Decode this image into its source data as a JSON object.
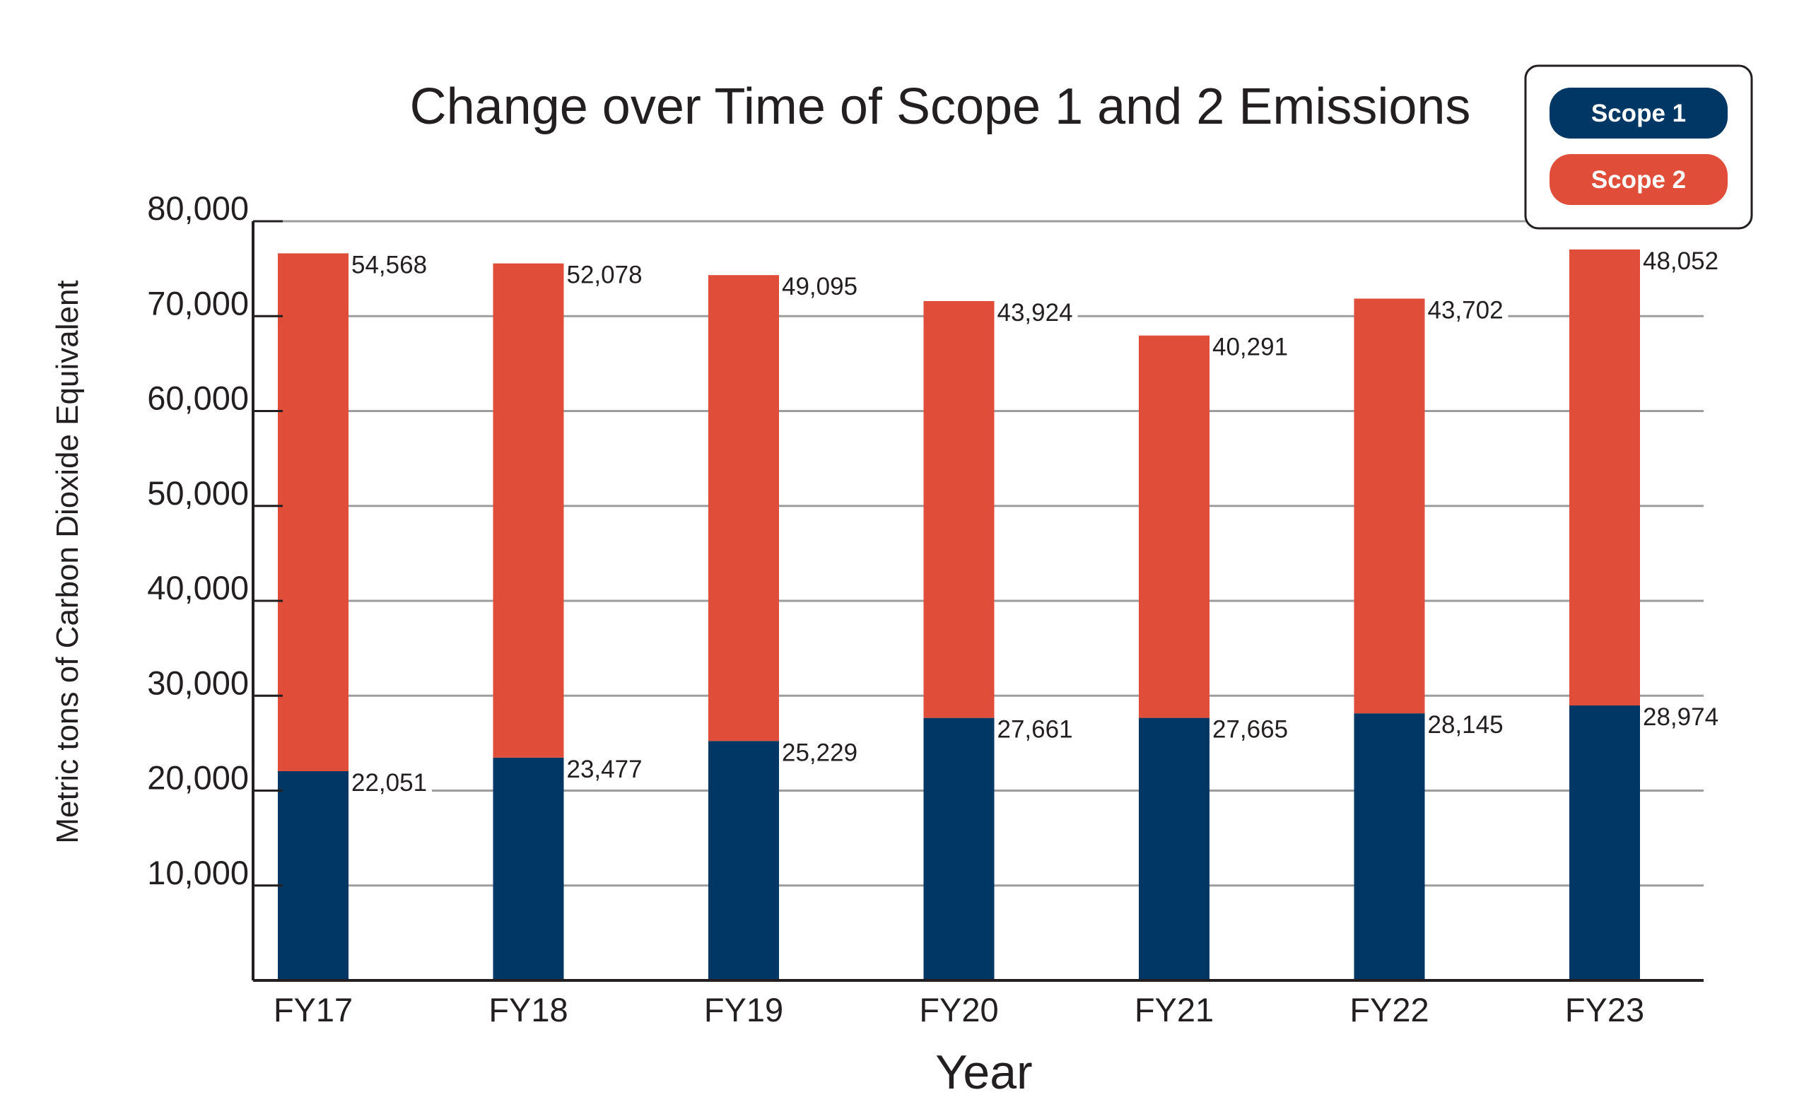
{
  "chart_data": {
    "type": "bar",
    "stacked": true,
    "title": "Change over Time of Scope 1 and 2 Emissions",
    "xlabel": "Year",
    "ylabel": "Metric tons of Carbon Dioxide Equivalent",
    "categories": [
      "FY17",
      "FY18",
      "FY19",
      "FY20",
      "FY21",
      "FY22",
      "FY23"
    ],
    "series": [
      {
        "name": "Scope 1",
        "color": "#003764",
        "values": [
          22051,
          23477,
          25229,
          27661,
          27665,
          28145,
          28974
        ],
        "labels": [
          "22,051",
          "23,477",
          "25,229",
          "27,661",
          "27,665",
          "28,145",
          "28,974"
        ]
      },
      {
        "name": "Scope 2",
        "color": "#e04e39",
        "values": [
          54568,
          52078,
          49095,
          43924,
          40291,
          43702,
          48052
        ],
        "labels": [
          "54,568",
          "52,078",
          "49,095",
          "43,924",
          "40,291",
          "43,702",
          "48,052"
        ]
      }
    ],
    "ylim": [
      0,
      80000
    ],
    "yticks": [
      10000,
      20000,
      30000,
      40000,
      50000,
      60000,
      70000,
      80000
    ],
    "ytick_labels": [
      "10,000",
      "20,000",
      "30,000",
      "40,000",
      "50,000",
      "60,000",
      "70,000",
      "80,000"
    ],
    "grid": true,
    "legend_position": "top-right"
  }
}
